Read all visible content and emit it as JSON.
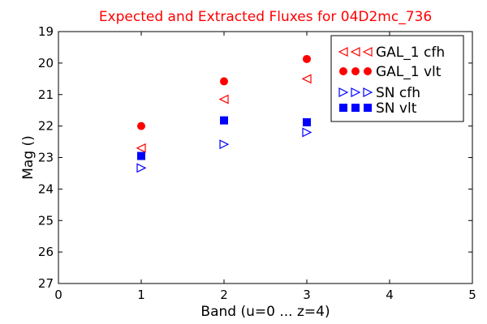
{
  "chart_data": {
    "type": "scatter",
    "title": "Expected and Extracted Fluxes for 04D2mc_736",
    "xlabel": "Band (u=0 ... z=4)",
    "ylabel": "Mag ()",
    "xlim": [
      0,
      5
    ],
    "ylim": [
      19,
      27
    ],
    "y_inverted": true,
    "grid": false,
    "legend_position": "top-right",
    "x_ticks": [
      "0",
      "1",
      "2",
      "3",
      "4",
      "5"
    ],
    "y_ticks": [
      "19",
      "20",
      "21",
      "22",
      "23",
      "24",
      "25",
      "26",
      "27"
    ],
    "colors": {
      "title": "#ff0000",
      "gal": "#ff0000",
      "sn": "#0000ff"
    },
    "series": [
      {
        "name": "GAL_1 cfh",
        "marker": "triangle-left-open",
        "color": "#ff0000",
        "points": [
          {
            "x": 1,
            "y": 22.7
          },
          {
            "x": 2,
            "y": 21.15
          },
          {
            "x": 3,
            "y": 20.5
          }
        ]
      },
      {
        "name": "GAL_1 vlt",
        "marker": "circle-filled",
        "color": "#ff0000",
        "points": [
          {
            "x": 1,
            "y": 22.0
          },
          {
            "x": 2,
            "y": 20.58
          },
          {
            "x": 3,
            "y": 19.87
          }
        ]
      },
      {
        "name": "SN cfh",
        "marker": "triangle-right-open",
        "color": "#0000ff",
        "points": [
          {
            "x": 1,
            "y": 23.33
          },
          {
            "x": 2,
            "y": 22.58
          },
          {
            "x": 3,
            "y": 22.2
          }
        ]
      },
      {
        "name": "SN vlt",
        "marker": "square-filled",
        "color": "#0000ff",
        "points": [
          {
            "x": 1,
            "y": 22.95
          },
          {
            "x": 2,
            "y": 21.82
          },
          {
            "x": 3,
            "y": 21.88
          }
        ]
      }
    ]
  }
}
